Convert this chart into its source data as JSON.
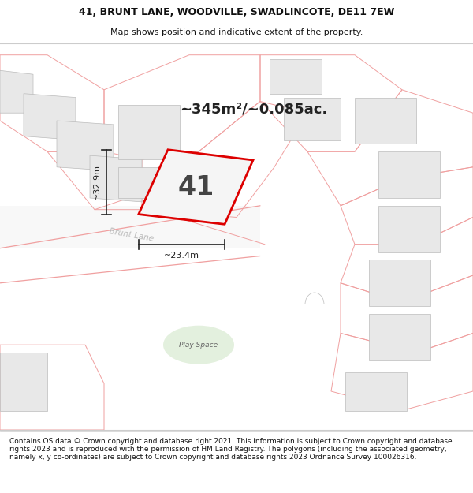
{
  "title_line1": "41, BRUNT LANE, WOODVILLE, SWADLINCOTE, DE11 7EW",
  "title_line2": "Map shows position and indicative extent of the property.",
  "footer_text": "Contains OS data © Crown copyright and database right 2021. This information is subject to Crown copyright and database rights 2023 and is reproduced with the permission of HM Land Registry. The polygons (including the associated geometry, namely x, y co-ordinates) are subject to Crown copyright and database rights 2023 Ordnance Survey 100026316.",
  "area_text": "~345m²/~0.085ac.",
  "plot_label": "41",
  "dim_width_text": "~23.4m",
  "dim_height_text": "~32.9m",
  "road_label": "Brunt Lane",
  "play_space_label": "Play Space",
  "map_bg": "#ffffff",
  "building_fill": "#e8e8e8",
  "building_edge": "#bbbbbb",
  "plot_outline_color": "#f0a0a0",
  "road_outline_color": "#f0a0a0",
  "red_color": "#dd0000",
  "plot_fill": "#f0f0f0",
  "play_fill": "#d8ead0",
  "road_label_color": "#aaaaaa",
  "title_fontsize": 9,
  "subtitle_fontsize": 8,
  "area_fontsize": 13,
  "plot_num_fontsize": 24,
  "dim_fontsize": 8,
  "footer_fontsize": 6.5
}
